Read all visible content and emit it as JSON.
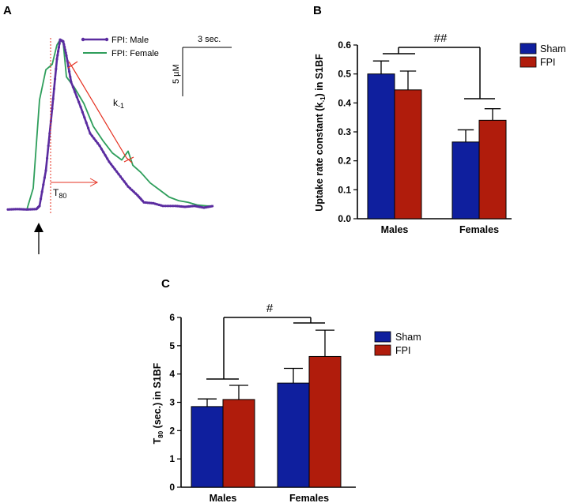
{
  "panels": {
    "a": {
      "label": "A"
    },
    "b": {
      "label": "B"
    },
    "c": {
      "label": "C"
    }
  },
  "chart_data": [
    {
      "panel": "A",
      "type": "line",
      "title": "",
      "legend": [
        "FPI: Male",
        "FPI: Female"
      ],
      "legend_position": "top-right",
      "series": [
        {
          "name": "FPI: Male",
          "color": "#5b2ca0",
          "marker": "circle",
          "points": [
            [
              0,
              0.3
            ],
            [
              0.3,
              0.32
            ],
            [
              0.6,
              0.3
            ],
            [
              0.9,
              0.32
            ],
            [
              1.0,
              0.5
            ],
            [
              1.2,
              2.5
            ],
            [
              1.4,
              6.0
            ],
            [
              1.55,
              8.8
            ],
            [
              1.65,
              9.9
            ],
            [
              1.75,
              9.8
            ],
            [
              1.85,
              9.0
            ],
            [
              2.0,
              7.5
            ],
            [
              2.3,
              6.1
            ],
            [
              2.6,
              4.6
            ],
            [
              2.9,
              3.9
            ],
            [
              3.2,
              3.0
            ],
            [
              3.5,
              2.3
            ],
            [
              3.8,
              1.6
            ],
            [
              4.1,
              1.1
            ],
            [
              4.3,
              0.7
            ],
            [
              4.6,
              0.65
            ],
            [
              4.9,
              0.5
            ],
            [
              5.3,
              0.5
            ],
            [
              5.6,
              0.45
            ],
            [
              5.9,
              0.5
            ],
            [
              6.2,
              0.4
            ],
            [
              6.5,
              0.5
            ]
          ]
        },
        {
          "name": "FPI: Female",
          "color": "#2e9e5b",
          "points": [
            [
              0,
              0.3
            ],
            [
              0.3,
              0.32
            ],
            [
              0.6,
              0.3
            ],
            [
              0.8,
              1.5
            ],
            [
              1.0,
              6.5
            ],
            [
              1.2,
              8.2
            ],
            [
              1.4,
              8.5
            ],
            [
              1.55,
              9.6
            ],
            [
              1.65,
              9.9
            ],
            [
              1.75,
              9.7
            ],
            [
              1.85,
              7.8
            ],
            [
              2.1,
              7.2
            ],
            [
              2.4,
              6.3
            ],
            [
              2.7,
              5.0
            ],
            [
              3.0,
              4.2
            ],
            [
              3.3,
              3.5
            ],
            [
              3.6,
              3.1
            ],
            [
              3.8,
              3.6
            ],
            [
              3.95,
              2.8
            ],
            [
              4.2,
              2.4
            ],
            [
              4.5,
              1.8
            ],
            [
              4.8,
              1.4
            ],
            [
              5.1,
              1.0
            ],
            [
              5.4,
              0.8
            ],
            [
              5.7,
              0.7
            ],
            [
              6.0,
              0.55
            ],
            [
              6.3,
              0.5
            ],
            [
              6.5,
              0.5
            ]
          ]
        }
      ],
      "annotations": {
        "k_label": "k",
        "k_sub": "-1",
        "t_label": "T",
        "t_sub": "80"
      },
      "scale_bar": {
        "x_text": "3 sec.",
        "y_text": "5 µM"
      }
    },
    {
      "panel": "B",
      "type": "bar",
      "categories": [
        "Males",
        "Females"
      ],
      "series": [
        {
          "name": "Sham",
          "values": [
            0.5,
            0.265
          ],
          "errors": [
            0.045,
            0.042
          ]
        },
        {
          "name": "FPI",
          "values": [
            0.445,
            0.34
          ],
          "errors": [
            0.065,
            0.04
          ]
        }
      ],
      "ylabel_pre": "Uptake rate constant (k",
      "ylabel_sub": "-1",
      "ylabel_post": ") in S1BF",
      "ylim": [
        0,
        0.6
      ],
      "yticks": [
        "0.0",
        "0.1",
        "0.2",
        "0.3",
        "0.4",
        "0.5",
        "0.6"
      ],
      "significance": "##",
      "legend_position": "top-right"
    },
    {
      "panel": "C",
      "type": "bar",
      "categories": [
        "Males",
        "Females"
      ],
      "series": [
        {
          "name": "Sham",
          "values": [
            2.85,
            3.68
          ],
          "errors": [
            0.27,
            0.52
          ]
        },
        {
          "name": "FPI",
          "values": [
            3.1,
            4.62
          ],
          "errors": [
            0.5,
            0.93
          ]
        }
      ],
      "ylabel_pre": "T",
      "ylabel_sub": "80",
      "ylabel_post": " (sec.) in S1BF",
      "ylim": [
        0,
        6
      ],
      "yticks": [
        "0",
        "1",
        "2",
        "3",
        "4",
        "5",
        "6"
      ],
      "significance": "#",
      "legend_position": "top-right"
    }
  ],
  "colors": {
    "sham": "#0f1f9e",
    "fpi": "#b01c0c",
    "male_trace": "#5b2ca0",
    "female_trace": "#2e9e5b",
    "annotation": "#e53020"
  }
}
